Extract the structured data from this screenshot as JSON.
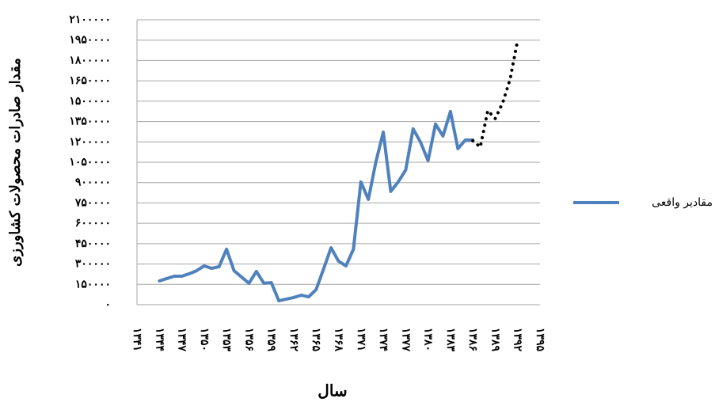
{
  "chart_data": {
    "type": "line",
    "ylabel": "مقدار صادرات محصولات کشاورزی",
    "xlabel": "سال",
    "x": [
      1344,
      1345,
      1346,
      1347,
      1348,
      1349,
      1350,
      1351,
      1352,
      1353,
      1354,
      1355,
      1356,
      1357,
      1358,
      1359,
      1360,
      1361,
      1362,
      1363,
      1364,
      1365,
      1366,
      1367,
      1368,
      1369,
      1370,
      1371,
      1372,
      1373,
      1374,
      1375,
      1376,
      1377,
      1378,
      1379,
      1380,
      1381,
      1382,
      1383,
      1384,
      1385,
      1386
    ],
    "series": [
      {
        "name": "مقادیر واقعی",
        "color": "#4f81bd",
        "dash": "solid",
        "values": [
          175000,
          193000,
          210000,
          210000,
          228000,
          251000,
          286000,
          268000,
          280000,
          409000,
          251000,
          204000,
          158000,
          245000,
          158000,
          163000,
          29000,
          41000,
          53000,
          70000,
          58000,
          111000,
          263000,
          420000,
          321000,
          286000,
          409000,
          905000,
          776000,
          1050000,
          1272000,
          835000,
          905000,
          992000,
          1296000,
          1197000,
          1062000,
          1331000,
          1243000,
          1424000,
          1150000,
          1214000,
          1214000
        ]
      },
      {
        "color": "#000000",
        "dash": "dotted",
        "x": [
          1386,
          1387,
          1388,
          1389,
          1390,
          1391,
          1392
        ],
        "values": [
          1208000,
          1162000,
          1430000,
          1372000,
          1488000,
          1663000,
          1950000
        ]
      }
    ],
    "xlim": [
      1341,
      1395
    ],
    "xticks": [
      {
        "value": 1341,
        "label": "۱۳۴۱"
      },
      {
        "value": 1344,
        "label": "۱۳۴۴"
      },
      {
        "value": 1347,
        "label": "۱۳۴۷"
      },
      {
        "value": 1350,
        "label": "۱۳۵۰"
      },
      {
        "value": 1353,
        "label": "۱۳۵۳"
      },
      {
        "value": 1356,
        "label": "۱۳۵۶"
      },
      {
        "value": 1359,
        "label": "۱۳۵۹"
      },
      {
        "value": 1362,
        "label": "۱۳۶۲"
      },
      {
        "value": 1365,
        "label": "۱۳۶۵"
      },
      {
        "value": 1368,
        "label": "۱۳۶۸"
      },
      {
        "value": 1371,
        "label": "۱۳۷۱"
      },
      {
        "value": 1374,
        "label": "۱۳۷۴"
      },
      {
        "value": 1377,
        "label": "۱۳۷۷"
      },
      {
        "value": 1380,
        "label": "۱۳۸۰"
      },
      {
        "value": 1383,
        "label": "۱۳۸۳"
      },
      {
        "value": 1386,
        "label": "۱۳۸۶"
      },
      {
        "value": 1389,
        "label": "۱۳۸۹"
      },
      {
        "value": 1392,
        "label": "۱۳۹۲"
      },
      {
        "value": 1395,
        "label": "۱۳۹۵"
      }
    ],
    "ylim": [
      0,
      2100000
    ],
    "yticks": [
      {
        "value": 0,
        "label": "۰"
      },
      {
        "value": 150000,
        "label": "۱۵۰۰۰۰"
      },
      {
        "value": 300000,
        "label": "۳۰۰۰۰۰"
      },
      {
        "value": 450000,
        "label": "۴۵۰۰۰۰"
      },
      {
        "value": 600000,
        "label": "۶۰۰۰۰۰"
      },
      {
        "value": 750000,
        "label": "۷۵۰۰۰۰"
      },
      {
        "value": 900000,
        "label": "۹۰۰۰۰۰"
      },
      {
        "value": 1050000,
        "label": "۱۰۵۰۰۰۰"
      },
      {
        "value": 1200000,
        "label": "۱۲۰۰۰۰۰"
      },
      {
        "value": 1350000,
        "label": "۱۳۵۰۰۰۰"
      },
      {
        "value": 1500000,
        "label": "۱۵۰۰۰۰۰"
      },
      {
        "value": 1650000,
        "label": "۱۶۵۰۰۰۰"
      },
      {
        "value": 1800000,
        "label": "۱۸۰۰۰۰۰"
      },
      {
        "value": 1950000,
        "label": "۱۹۵۰۰۰۰"
      },
      {
        "value": 2100000,
        "label": "۲۱۰۰۰۰۰"
      }
    ],
    "grid": true,
    "legend": "right"
  }
}
